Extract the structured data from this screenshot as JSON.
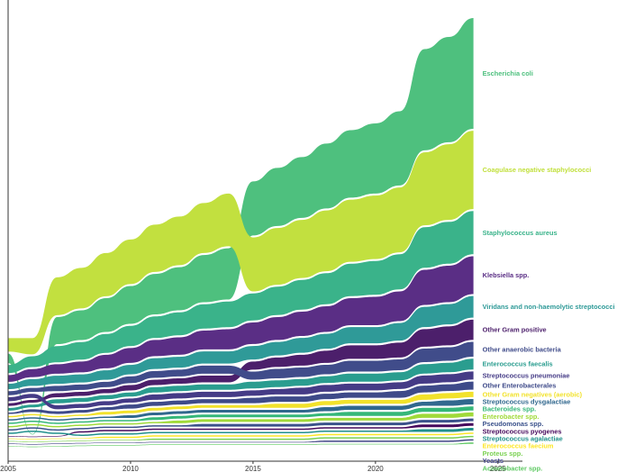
{
  "chart_data": {
    "type": "bump-area",
    "title": "",
    "xlabel": "",
    "ylabel": "",
    "xlim": [
      2005,
      2026
    ],
    "x_ticks": [
      2005,
      2010,
      2015,
      2020,
      2025
    ],
    "years": [
      2005,
      2006,
      2007,
      2008,
      2009,
      2010,
      2011,
      2012,
      2013,
      2014,
      2015,
      2016,
      2017,
      2018,
      2019,
      2020,
      2021,
      2022,
      2023,
      2024
    ],
    "value_scale": {
      "top_value_2024": 0.92,
      "top_value_2005": 0.07,
      "growth": "approximately linear 2007-2021, jump in 2022"
    },
    "series": [
      {
        "name": "Escherichia coli",
        "color": "#4ec07e",
        "thickness": [
          0.07,
          0.0,
          0.2,
          0.22,
          0.25,
          0.28,
          0.3,
          0.32,
          0.35,
          0.38,
          0.4,
          0.43,
          0.45,
          0.48,
          0.5,
          0.52,
          0.55,
          0.75,
          0.78,
          0.82
        ]
      },
      {
        "name": "Coagulase negative staphylococci",
        "color": "#c2e03f",
        "thickness": [
          0.1,
          0.12,
          0.28,
          0.3,
          0.32,
          0.33,
          0.35,
          0.36,
          0.37,
          0.39,
          0.4,
          0.42,
          0.43,
          0.45,
          0.46,
          0.47,
          0.48,
          0.54,
          0.56,
          0.58
        ]
      },
      {
        "name": "Staphylococcus aureus",
        "color": "#3ab38a",
        "thickness": [
          0.06,
          0.08,
          0.12,
          0.13,
          0.14,
          0.15,
          0.16,
          0.17,
          0.18,
          0.19,
          0.2,
          0.21,
          0.22,
          0.23,
          0.24,
          0.25,
          0.26,
          0.3,
          0.31,
          0.32
        ]
      },
      {
        "name": "Klebsiella spp.",
        "color": "#5a2e85",
        "thickness": [
          0.05,
          0.06,
          0.07,
          0.08,
          0.1,
          0.11,
          0.12,
          0.13,
          0.14,
          0.15,
          0.16,
          0.17,
          0.18,
          0.19,
          0.2,
          0.21,
          0.22,
          0.26,
          0.27,
          0.28
        ]
      },
      {
        "name": "Viridans and non-haemolytic streptococci",
        "color": "#2f9a98",
        "thickness": [
          0.04,
          0.05,
          0.06,
          0.06,
          0.07,
          0.07,
          0.08,
          0.08,
          0.09,
          0.09,
          0.1,
          0.1,
          0.11,
          0.11,
          0.12,
          0.12,
          0.13,
          0.15,
          0.15,
          0.16
        ]
      },
      {
        "name": "Other Gram positive",
        "color": "#4c1f6b",
        "thickness": [
          0.02,
          0.02,
          0.03,
          0.03,
          0.03,
          0.04,
          0.04,
          0.04,
          0.05,
          0.05,
          0.06,
          0.07,
          0.08,
          0.09,
          0.1,
          0.1,
          0.11,
          0.13,
          0.14,
          0.15
        ]
      },
      {
        "name": "Other anaerobic bacteria",
        "color": "#404c8a",
        "thickness": [
          0.03,
          0.03,
          0.04,
          0.04,
          0.04,
          0.05,
          0.05,
          0.05,
          0.06,
          0.06,
          0.06,
          0.07,
          0.07,
          0.07,
          0.08,
          0.08,
          0.08,
          0.1,
          0.1,
          0.11
        ]
      },
      {
        "name": "Enterococcus faecalis",
        "color": "#2a9d8f",
        "thickness": [
          0.02,
          0.02,
          0.03,
          0.03,
          0.03,
          0.03,
          0.04,
          0.04,
          0.04,
          0.04,
          0.05,
          0.05,
          0.05,
          0.05,
          0.06,
          0.06,
          0.06,
          0.07,
          0.07,
          0.08
        ]
      },
      {
        "name": "Streptococcus pneumoniae",
        "color": "#453b86",
        "thickness": [
          0.03,
          0.03,
          0.03,
          0.03,
          0.03,
          0.03,
          0.04,
          0.04,
          0.04,
          0.04,
          0.04,
          0.04,
          0.05,
          0.05,
          0.05,
          0.05,
          0.05,
          0.06,
          0.06,
          0.06
        ]
      },
      {
        "name": "Other Enterobacterales",
        "color": "#3e4a89",
        "thickness": [
          0.01,
          0.02,
          0.02,
          0.02,
          0.02,
          0.03,
          0.03,
          0.03,
          0.03,
          0.03,
          0.04,
          0.04,
          0.04,
          0.04,
          0.04,
          0.04,
          0.05,
          0.05,
          0.05,
          0.06
        ]
      },
      {
        "name": "Other Gram negatives (aerobic)",
        "color": "#f2e22b",
        "thickness": [
          0.01,
          0.01,
          0.01,
          0.01,
          0.02,
          0.02,
          0.02,
          0.02,
          0.02,
          0.02,
          0.02,
          0.03,
          0.03,
          0.03,
          0.03,
          0.03,
          0.03,
          0.04,
          0.04,
          0.04
        ]
      },
      {
        "name": "Streptococcus dysgalactiae",
        "color": "#31688e",
        "thickness": [
          0.01,
          0.01,
          0.01,
          0.01,
          0.01,
          0.02,
          0.02,
          0.02,
          0.02,
          0.02,
          0.02,
          0.02,
          0.02,
          0.03,
          0.03,
          0.03,
          0.03,
          0.03,
          0.04,
          0.04
        ]
      },
      {
        "name": "Bacteroides spp.",
        "color": "#35b779",
        "thickness": [
          0.01,
          0.01,
          0.01,
          0.01,
          0.01,
          0.01,
          0.02,
          0.02,
          0.02,
          0.02,
          0.02,
          0.02,
          0.02,
          0.02,
          0.03,
          0.03,
          0.03,
          0.03,
          0.03,
          0.03
        ]
      },
      {
        "name": "Enterobacter spp.",
        "color": "#a0da39",
        "thickness": [
          0.01,
          0.01,
          0.01,
          0.01,
          0.01,
          0.01,
          0.01,
          0.02,
          0.02,
          0.02,
          0.02,
          0.02,
          0.02,
          0.02,
          0.02,
          0.02,
          0.02,
          0.03,
          0.03,
          0.03
        ]
      },
      {
        "name": "Pseudomonas spp.",
        "color": "#3b528b",
        "thickness": [
          0.01,
          0.01,
          0.01,
          0.01,
          0.01,
          0.01,
          0.01,
          0.01,
          0.02,
          0.02,
          0.02,
          0.02,
          0.02,
          0.02,
          0.02,
          0.02,
          0.02,
          0.02,
          0.02,
          0.02
        ]
      },
      {
        "name": "Streptococcus pyogenes",
        "color": "#46085c",
        "thickness": [
          0.0,
          0.0,
          0.0,
          0.01,
          0.01,
          0.01,
          0.01,
          0.01,
          0.01,
          0.01,
          0.01,
          0.01,
          0.01,
          0.01,
          0.01,
          0.01,
          0.01,
          0.02,
          0.02,
          0.02
        ]
      },
      {
        "name": "Streptococcus agalactiae",
        "color": "#21918c",
        "thickness": [
          0.01,
          0.01,
          0.01,
          0.01,
          0.01,
          0.01,
          0.01,
          0.01,
          0.01,
          0.01,
          0.01,
          0.01,
          0.01,
          0.01,
          0.01,
          0.01,
          0.01,
          0.02,
          0.02,
          0.02
        ]
      },
      {
        "name": "Enterococcus faecium",
        "color": "#fde725",
        "thickness": [
          0.0,
          0.0,
          0.0,
          0.0,
          0.01,
          0.01,
          0.01,
          0.01,
          0.01,
          0.01,
          0.01,
          0.01,
          0.01,
          0.01,
          0.01,
          0.01,
          0.01,
          0.01,
          0.01,
          0.01
        ]
      },
      {
        "name": "Proteus spp.",
        "color": "#7ad151",
        "thickness": [
          0.0,
          0.0,
          0.0,
          0.0,
          0.0,
          0.0,
          0.01,
          0.01,
          0.01,
          0.01,
          0.01,
          0.01,
          0.01,
          0.01,
          0.01,
          0.01,
          0.01,
          0.01,
          0.01,
          0.01
        ]
      },
      {
        "name": "Yeasts",
        "color": "#414487",
        "thickness": [
          0.0,
          0.0,
          0.0,
          0.0,
          0.0,
          0.0,
          0.0,
          0.0,
          0.0,
          0.0,
          0.0,
          0.0,
          0.0,
          0.01,
          0.01,
          0.01,
          0.01,
          0.01,
          0.01,
          0.01
        ]
      },
      {
        "name": "Acinetobacter spp.",
        "color": "#5ec962",
        "thickness": [
          0.0,
          0.0,
          0.0,
          0.0,
          0.0,
          0.0,
          0.0,
          0.0,
          0.0,
          0.0,
          0.0,
          0.0,
          0.0,
          0.0,
          0.0,
          0.0,
          0.0,
          0.0,
          0.0,
          0.01
        ]
      }
    ]
  }
}
